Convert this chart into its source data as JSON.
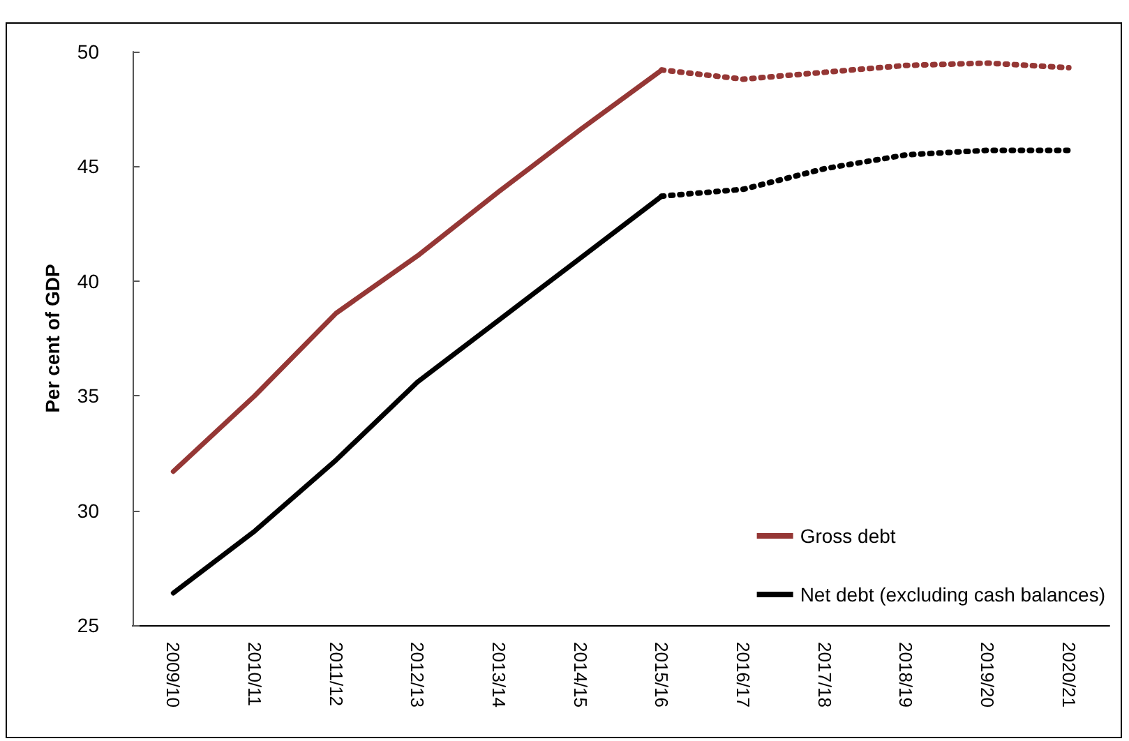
{
  "chart_data": {
    "type": "line",
    "ylabel": "Per cent of GDP",
    "categories": [
      "2009/10",
      "2010/11",
      "2011/12",
      "2012/13",
      "2013/14",
      "2014/15",
      "2015/16",
      "2016/17",
      "2017/18",
      "2018/19",
      "2019/20",
      "2020/21"
    ],
    "series": [
      {
        "name": "Gross debt",
        "color": "#953735",
        "line_style": "solid",
        "values": [
          31.7,
          35.0,
          38.6,
          41.1,
          43.9,
          46.6,
          49.2,
          null,
          null,
          null,
          null,
          null
        ]
      },
      {
        "name": "Net debt (excluding cash balances)",
        "color": "#000000",
        "line_style": "solid",
        "values": [
          26.4,
          29.1,
          32.2,
          35.6,
          38.3,
          41.0,
          43.7,
          null,
          null,
          null,
          null,
          null
        ]
      },
      {
        "color": "#953735",
        "line_style": "dotted",
        "values": [
          null,
          null,
          null,
          null,
          null,
          null,
          49.2,
          48.8,
          49.1,
          49.4,
          49.5,
          49.3
        ]
      },
      {
        "color": "#000000",
        "line_style": "dotted",
        "values": [
          null,
          null,
          null,
          null,
          null,
          null,
          43.7,
          44.0,
          44.9,
          45.5,
          45.7,
          45.7
        ]
      }
    ],
    "ylim": [
      25,
      50
    ],
    "yticks": [
      25,
      30,
      35,
      40,
      45,
      50
    ],
    "grid": false,
    "legend": "bottom right",
    "marker": "none"
  }
}
